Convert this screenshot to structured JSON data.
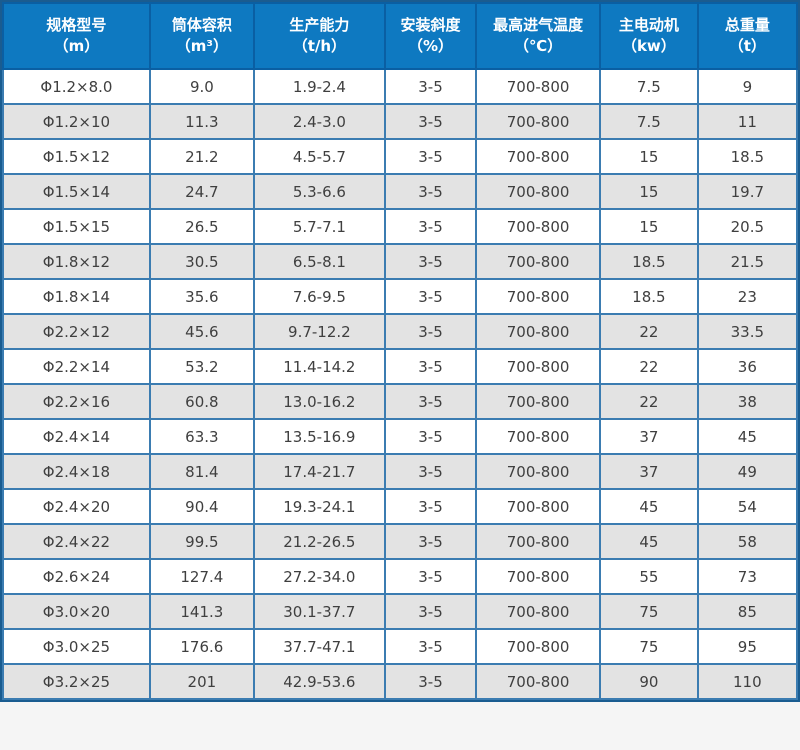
{
  "table": {
    "columns": [
      {
        "title": "规格型号",
        "unit": "（m）"
      },
      {
        "title": "筒体容积",
        "unit": "（m³）"
      },
      {
        "title": "生产能力",
        "unit": "（t/h）"
      },
      {
        "title": "安装斜度",
        "unit": "（%）"
      },
      {
        "title": "最高进气温度",
        "unit": "（℃）"
      },
      {
        "title": "主电动机",
        "unit": "（kw）"
      },
      {
        "title": "总重量",
        "unit": "（t）"
      }
    ]
  },
  "chart_data": {
    "type": "table",
    "columns": [
      "规格型号（m）",
      "筒体容积（m³）",
      "生产能力（t/h）",
      "安装斜度（%）",
      "最高进气温度（℃）",
      "主电动机（kw）",
      "总重量（t）"
    ],
    "rows": [
      [
        "Φ1.2×8.0",
        "9.0",
        "1.9-2.4",
        "3-5",
        "700-800",
        "7.5",
        "9"
      ],
      [
        "Φ1.2×10",
        "11.3",
        "2.4-3.0",
        "3-5",
        "700-800",
        "7.5",
        "11"
      ],
      [
        "Φ1.5×12",
        "21.2",
        "4.5-5.7",
        "3-5",
        "700-800",
        "15",
        "18.5"
      ],
      [
        "Φ1.5×14",
        "24.7",
        "5.3-6.6",
        "3-5",
        "700-800",
        "15",
        "19.7"
      ],
      [
        "Φ1.5×15",
        "26.5",
        "5.7-7.1",
        "3-5",
        "700-800",
        "15",
        "20.5"
      ],
      [
        "Φ1.8×12",
        "30.5",
        "6.5-8.1",
        "3-5",
        "700-800",
        "18.5",
        "21.5"
      ],
      [
        "Φ1.8×14",
        "35.6",
        "7.6-9.5",
        "3-5",
        "700-800",
        "18.5",
        "23"
      ],
      [
        "Φ2.2×12",
        "45.6",
        "9.7-12.2",
        "3-5",
        "700-800",
        "22",
        "33.5"
      ],
      [
        "Φ2.2×14",
        "53.2",
        "11.4-14.2",
        "3-5",
        "700-800",
        "22",
        "36"
      ],
      [
        "Φ2.2×16",
        "60.8",
        "13.0-16.2",
        "3-5",
        "700-800",
        "22",
        "38"
      ],
      [
        "Φ2.4×14",
        "63.3",
        "13.5-16.9",
        "3-5",
        "700-800",
        "37",
        "45"
      ],
      [
        "Φ2.4×18",
        "81.4",
        "17.4-21.7",
        "3-5",
        "700-800",
        "37",
        "49"
      ],
      [
        "Φ2.4×20",
        "90.4",
        "19.3-24.1",
        "3-5",
        "700-800",
        "45",
        "54"
      ],
      [
        "Φ2.4×22",
        "99.5",
        "21.2-26.5",
        "3-5",
        "700-800",
        "45",
        "58"
      ],
      [
        "Φ2.6×24",
        "127.4",
        "27.2-34.0",
        "3-5",
        "700-800",
        "55",
        "73"
      ],
      [
        "Φ3.0×20",
        "141.3",
        "30.1-37.7",
        "3-5",
        "700-800",
        "75",
        "85"
      ],
      [
        "Φ3.0×25",
        "176.6",
        "37.7-47.1",
        "3-5",
        "700-800",
        "75",
        "95"
      ],
      [
        "Φ3.2×25",
        "201",
        "42.9-53.6",
        "3-5",
        "700-800",
        "90",
        "110"
      ]
    ]
  },
  "colors": {
    "header_bg": "#0e79c1",
    "header_border": "#0a5fa3",
    "outer_border": "#1a5c90",
    "cell_border": "#3b7cb1",
    "row_alt_bg": "#e3e3e3",
    "row_bg": "#ffffff",
    "text": "#3f3f3f",
    "header_text": "#ffffff",
    "page_bg": "#f5f5f5"
  }
}
